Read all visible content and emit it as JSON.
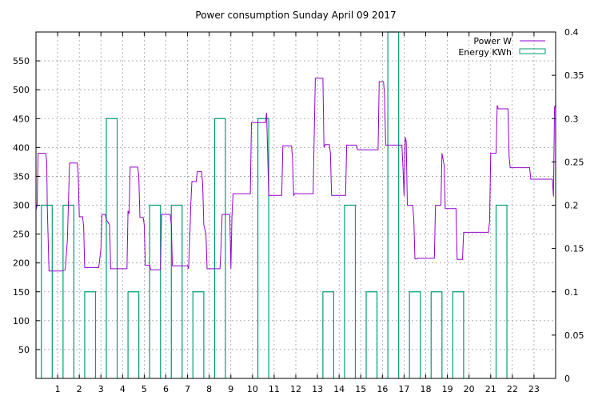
{
  "chart_data": {
    "type": "line",
    "title": "Power consumption Sunday April 09 2017",
    "xlabel": "",
    "ylabel": "",
    "xlim": [
      0,
      24
    ],
    "ylim": [
      0,
      600
    ],
    "y2lim": [
      0,
      0.4
    ],
    "grid": true,
    "legend_placement": "top-right",
    "x_ticks": [
      "1",
      "2",
      "3",
      "4",
      "5",
      "6",
      "7",
      "8",
      "9",
      "10",
      "11",
      "12",
      "13",
      "14",
      "15",
      "16",
      "17",
      "18",
      "19",
      "20",
      "21",
      "22",
      "23"
    ],
    "y_ticks": [
      "50",
      "100",
      "150",
      "200",
      "250",
      "300",
      "350",
      "400",
      "450",
      "500",
      "550"
    ],
    "y2_ticks": [
      "0",
      "0.05",
      "0.1",
      "0.15",
      "0.2",
      "0.25",
      "0.3",
      "0.35",
      "0.4"
    ],
    "series": [
      {
        "name": "Power W",
        "axis": "left",
        "color": "#9400d3",
        "points": [
          [
            0.0,
            292
          ],
          [
            0.05,
            300
          ],
          [
            0.1,
            390
          ],
          [
            0.45,
            390
          ],
          [
            0.5,
            375
          ],
          [
            0.52,
            300
          ],
          [
            0.6,
            186
          ],
          [
            1.2,
            186
          ],
          [
            1.35,
            188
          ],
          [
            1.45,
            240
          ],
          [
            1.55,
            373
          ],
          [
            1.9,
            373
          ],
          [
            1.95,
            355
          ],
          [
            2.0,
            280
          ],
          [
            2.15,
            280
          ],
          [
            2.2,
            265
          ],
          [
            2.25,
            192
          ],
          [
            2.9,
            192
          ],
          [
            3.0,
            225
          ],
          [
            3.05,
            284
          ],
          [
            3.2,
            284
          ],
          [
            3.25,
            275
          ],
          [
            3.4,
            266
          ],
          [
            3.45,
            190
          ],
          [
            4.2,
            190
          ],
          [
            4.25,
            290
          ],
          [
            4.3,
            285
          ],
          [
            4.35,
            366
          ],
          [
            4.7,
            366
          ],
          [
            4.75,
            350
          ],
          [
            4.8,
            279
          ],
          [
            4.95,
            279
          ],
          [
            5.0,
            266
          ],
          [
            5.05,
            196
          ],
          [
            5.25,
            196
          ],
          [
            5.3,
            188
          ],
          [
            5.75,
            188
          ],
          [
            5.8,
            284
          ],
          [
            6.2,
            284
          ],
          [
            6.25,
            266
          ],
          [
            6.3,
            195
          ],
          [
            7.0,
            195
          ],
          [
            7.05,
            190
          ],
          [
            7.1,
            240
          ],
          [
            7.15,
            300
          ],
          [
            7.2,
            341
          ],
          [
            7.4,
            341
          ],
          [
            7.45,
            358
          ],
          [
            7.65,
            358
          ],
          [
            7.7,
            336
          ],
          [
            7.75,
            266
          ],
          [
            7.85,
            250
          ],
          [
            7.9,
            190
          ],
          [
            8.5,
            190
          ],
          [
            8.55,
            232
          ],
          [
            8.6,
            284
          ],
          [
            8.95,
            284
          ],
          [
            9.0,
            190
          ],
          [
            9.05,
            280
          ],
          [
            9.1,
            320
          ],
          [
            9.9,
            320
          ],
          [
            9.95,
            443
          ],
          [
            10.6,
            443
          ],
          [
            10.65,
            460
          ],
          [
            10.7,
            390
          ],
          [
            10.75,
            317
          ],
          [
            11.35,
            317
          ],
          [
            11.4,
            403
          ],
          [
            11.8,
            403
          ],
          [
            11.85,
            380
          ],
          [
            11.9,
            317
          ],
          [
            11.95,
            320
          ],
          [
            12.8,
            320
          ],
          [
            12.85,
            420
          ],
          [
            12.9,
            520
          ],
          [
            13.25,
            520
          ],
          [
            13.3,
            400
          ],
          [
            13.35,
            405
          ],
          [
            13.55,
            405
          ],
          [
            13.6,
            390
          ],
          [
            13.65,
            317
          ],
          [
            14.3,
            317
          ],
          [
            14.35,
            404
          ],
          [
            14.8,
            404
          ],
          [
            14.85,
            396
          ],
          [
            15.8,
            396
          ],
          [
            15.85,
            514
          ],
          [
            16.05,
            514
          ],
          [
            16.1,
            490
          ],
          [
            16.15,
            404
          ],
          [
            16.9,
            404
          ],
          [
            16.95,
            363
          ],
          [
            17.0,
            316
          ],
          [
            17.05,
            418
          ],
          [
            17.1,
            410
          ],
          [
            17.15,
            300
          ],
          [
            17.4,
            300
          ],
          [
            17.45,
            275
          ],
          [
            17.5,
            207
          ],
          [
            17.6,
            207
          ],
          [
            17.65,
            208
          ],
          [
            18.4,
            208
          ],
          [
            18.45,
            300
          ],
          [
            18.7,
            300
          ],
          [
            18.75,
            390
          ],
          [
            18.85,
            370
          ],
          [
            18.9,
            294
          ],
          [
            19.4,
            294
          ],
          [
            19.45,
            206
          ],
          [
            19.7,
            206
          ],
          [
            19.75,
            253
          ],
          [
            20.9,
            253
          ],
          [
            20.95,
            273
          ],
          [
            21.0,
            390
          ],
          [
            21.25,
            390
          ],
          [
            21.3,
            473
          ],
          [
            21.35,
            467
          ],
          [
            21.8,
            467
          ],
          [
            21.85,
            385
          ],
          [
            21.9,
            365
          ],
          [
            22.8,
            365
          ],
          [
            22.85,
            345
          ],
          [
            23.85,
            345
          ],
          [
            23.9,
            315
          ],
          [
            23.95,
            470
          ],
          [
            24.0,
            473
          ]
        ]
      },
      {
        "name": "Energy KWh",
        "axis": "right",
        "color": "#009e73",
        "bars": [
          [
            0.0,
            0.2
          ],
          [
            1.0,
            0.2
          ],
          [
            2.0,
            0.1
          ],
          [
            3.0,
            0.3
          ],
          [
            4.0,
            0.1
          ],
          [
            5.0,
            0.2
          ],
          [
            6.0,
            0.2
          ],
          [
            7.0,
            0.1
          ],
          [
            8.0,
            0.3
          ],
          [
            9.0,
            0.0
          ],
          [
            10.0,
            0.3
          ],
          [
            11.0,
            0.0
          ],
          [
            12.0,
            0.0
          ],
          [
            13.0,
            0.1
          ],
          [
            14.0,
            0.2
          ],
          [
            15.0,
            0.1
          ],
          [
            16.0,
            0.4
          ],
          [
            17.0,
            0.1
          ],
          [
            18.0,
            0.1
          ],
          [
            19.0,
            0.1
          ],
          [
            20.0,
            0.0
          ],
          [
            21.0,
            0.2
          ],
          [
            22.0,
            0.0
          ],
          [
            23.0,
            0.0
          ]
        ]
      }
    ]
  }
}
